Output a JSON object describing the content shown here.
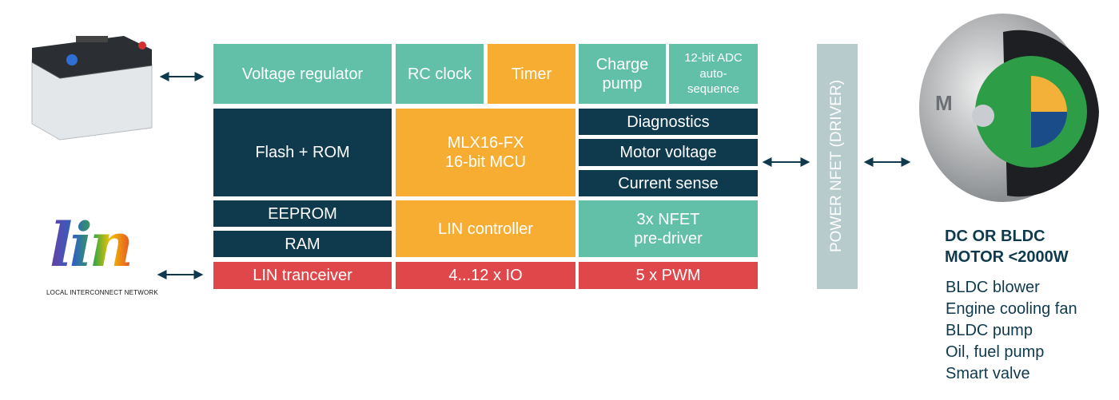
{
  "blocks": [
    {
      "lines": [
        "Voltage regulator"
      ]
    },
    {
      "lines": [
        "RC clock"
      ]
    },
    {
      "lines": [
        "Timer"
      ]
    },
    {
      "lines": [
        "Charge",
        "pump"
      ]
    },
    {
      "lines": [
        "12-bit ADC",
        "auto-",
        "sequence"
      ]
    },
    {
      "lines": [
        "Flash + ROM"
      ]
    },
    {
      "lines": [
        "MLX16-FX",
        "16-bit MCU"
      ]
    },
    {
      "lines": [
        "Diagnostics"
      ]
    },
    {
      "lines": [
        "Motor voltage"
      ]
    },
    {
      "lines": [
        "Current sense"
      ]
    },
    {
      "lines": [
        "EEPROM"
      ]
    },
    {
      "lines": [
        "RAM"
      ]
    },
    {
      "lines": [
        "LIN controller"
      ]
    },
    {
      "lines": [
        "3x NFET",
        "pre-driver"
      ]
    },
    {
      "lines": [
        "LIN tranceiver"
      ]
    },
    {
      "lines": [
        "4...12 x IO"
      ]
    },
    {
      "lines": [
        "5 x PWM"
      ]
    }
  ],
  "driver": {
    "label": "POWER NFET (DRIVER)"
  },
  "lin_logo": {
    "mark": "lin",
    "caption": "LOCAL INTERCONNECT NETWORK"
  },
  "motor": {
    "heading": [
      "DC OR BLDC",
      "MOTOR <2000W"
    ],
    "applications": [
      "BLDC blower",
      "Engine cooling fan",
      "BLDC pump",
      "Oil, fuel pump",
      "Smart valve"
    ]
  }
}
